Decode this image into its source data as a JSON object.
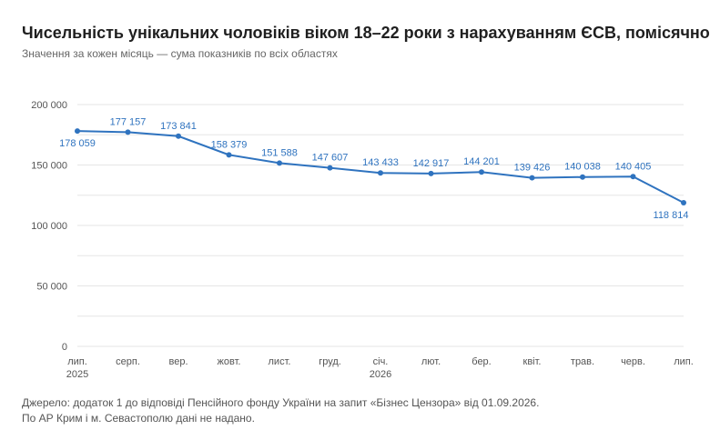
{
  "chart_data": {
    "type": "line",
    "title": "Чисельність унікальних чоловіків віком 18–22 роки з нарахуванням ЄСВ, помісячно",
    "subtitle": "Значення за кожен місяць — сума показників по всіх областях",
    "xlabel": "",
    "ylabel": "",
    "x_labels": [
      [
        "лип.",
        "2025"
      ],
      [
        "серп."
      ],
      [
        "вер."
      ],
      [
        "жовт."
      ],
      [
        "лист."
      ],
      [
        "груд."
      ],
      [
        "січ.",
        "2026"
      ],
      [
        "лют."
      ],
      [
        "бер."
      ],
      [
        "квіт."
      ],
      [
        "трав."
      ],
      [
        "черв."
      ],
      [
        "лип."
      ]
    ],
    "y_ticks": [
      0,
      50000,
      100000,
      150000,
      200000
    ],
    "y_tick_labels": [
      "0",
      "50 000",
      "100 000",
      "150 000",
      "200 000"
    ],
    "ylim": [
      0,
      200000
    ],
    "series": [
      {
        "color": "#2f73bf",
        "values": [
          178059,
          177157,
          173841,
          158379,
          151588,
          147607,
          143433,
          142917,
          144201,
          139426,
          140038,
          140405,
          118814
        ],
        "labels": [
          "178 059",
          "177 157",
          "173 841",
          "158 379",
          "151 588",
          "147 607",
          "143 433",
          "142 917",
          "144 201",
          "139 426",
          "140 038",
          "140 405",
          "118 814"
        ],
        "label_positions": [
          "below",
          "above",
          "above",
          "above",
          "above",
          "above",
          "above",
          "above",
          "above",
          "above",
          "above",
          "above",
          "below"
        ]
      }
    ],
    "grid": true,
    "legend": "none"
  },
  "footer": {
    "line1": "Джерело: додаток 1 до відповіді Пенсійного фонду України на запит «Бізнес Цензора» від 01.09.2026.",
    "line2": "По АР Крим і м. Севастополю дані не надано."
  },
  "colors": {
    "grid": "#e5e5e5",
    "axis_text": "#555555",
    "line": "#2f73bf"
  }
}
